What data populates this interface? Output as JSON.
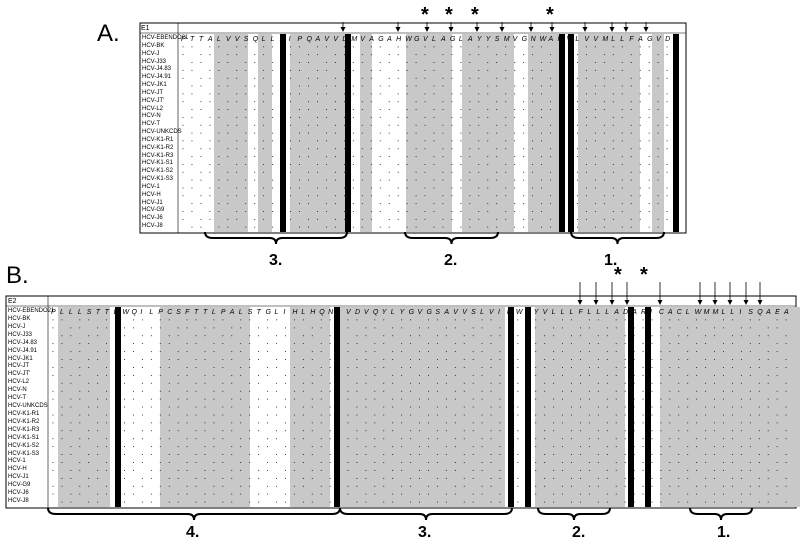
{
  "panels": {
    "A": {
      "letter": "A.",
      "header": "E1",
      "sequences": [
        "HCV-EBENDO21",
        "HCV-BK",
        "HCV-J",
        "HCV-J33",
        "HCV-J4.83",
        "HCV-J4.91",
        "HCV-JK1",
        "HCV-JT",
        "HCV-JT'",
        "HCV-L2",
        "HCV-N",
        "HCV-T",
        "HCV-UNKCDS",
        "HCV-K1-R1",
        "HCV-K1-R2",
        "HCV-K1-R3",
        "HCV-K1-S1",
        "HCV-K1-S2",
        "HCV-K1-S3",
        "HCV-1",
        "HCV-H",
        "HCV-J1",
        "HCV-G9",
        "HCV-J6",
        "HCV-J8"
      ],
      "residues": "PTTALVVSQLLRIPQAVVDMVAGAHWGVLAGLAYYSMVGNWAKVLVVMLLFAGVDG",
      "braces": [
        "3.",
        "2.",
        "1."
      ],
      "stars": 4
    },
    "B": {
      "letter": "B.",
      "header": "E2",
      "sequences": [
        "HCV-EBENDO21",
        "HCV-BK",
        "HCV-J",
        "HCV-J33",
        "HCV-J4.83",
        "HCV-J4.91",
        "HCV-JK1",
        "HCV-JT",
        "HCV-JT'",
        "HCV-L2",
        "HCV-N",
        "HCV-T",
        "HCV-UNKCDS",
        "HCV-K1-R1",
        "HCV-K1-R2",
        "HCV-K1-R3",
        "HCV-K1-S1",
        "HCV-K1-S2",
        "HCV-K1-S3",
        "HCV-1",
        "HCV-H",
        "HCV-J1",
        "HCV-G9",
        "HCV-J6",
        "HCV-J8"
      ],
      "residues": "PLLLSTTEWQILPCSFTTLPALSTGLIHLHQNIVDVQYLYGVGSAVVSLVIKWEYVLLLFLLLADARICACLWMMLLISQAEA",
      "braces": [
        "4.",
        "3.",
        "2.",
        "1."
      ],
      "stars": 2
    }
  }
}
